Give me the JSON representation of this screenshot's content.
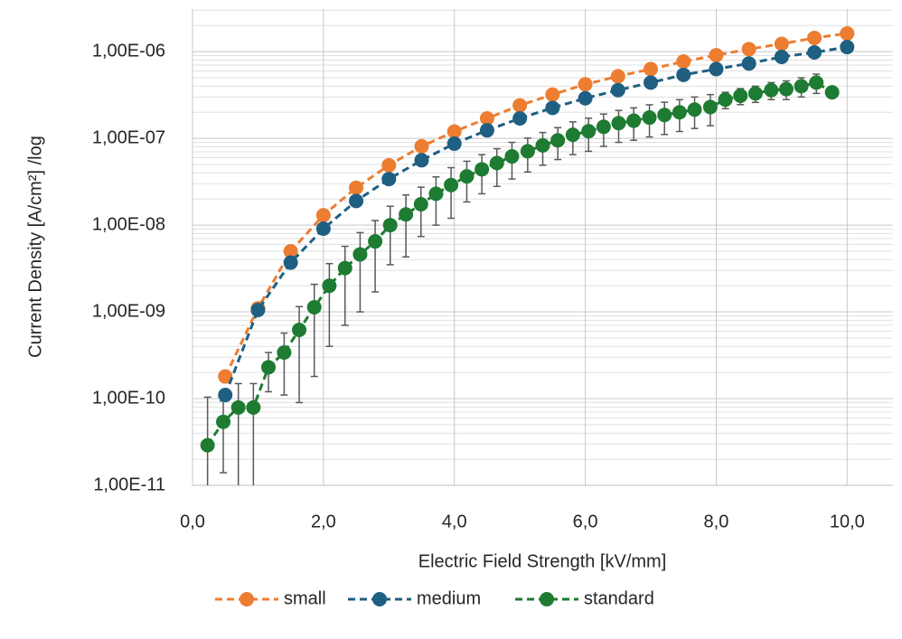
{
  "chart_data": {
    "type": "line",
    "x_label": "Electric Field Strength [kV/mm]",
    "y_label": "Current Density [A/cm²] /log",
    "log_y": true,
    "grid": true,
    "minor_grid": true,
    "legend": "bottom",
    "xlim": [
      0,
      10.7
    ],
    "xticks": [
      {
        "value": 0,
        "label": "0,0"
      },
      {
        "value": 2,
        "label": "2,0"
      },
      {
        "value": 4,
        "label": "4,0"
      },
      {
        "value": 6,
        "label": "6,0"
      },
      {
        "value": 8,
        "label": "8,0"
      },
      {
        "value": 10,
        "label": "10,0"
      }
    ],
    "ylim": [
      1e-11,
      3.1e-06
    ],
    "yticks": [
      {
        "value": 1e-11,
        "label": "1,00E-11"
      },
      {
        "value": 1e-10,
        "label": "1,00E-10"
      },
      {
        "value": 1e-09,
        "label": "1,00E-09"
      },
      {
        "value": 1e-08,
        "label": "1,00E-08"
      },
      {
        "value": 1e-07,
        "label": "1,00E-07"
      },
      {
        "value": 1e-06,
        "label": "1,00E-06"
      }
    ],
    "series": [
      {
        "name": "small",
        "color": "#ED7D31",
        "x": [
          0.5,
          1,
          1.5,
          2,
          2.5,
          3,
          3.5,
          4,
          4.5,
          5,
          5.5,
          6,
          6.5,
          7,
          7.5,
          8,
          8.5,
          9,
          9.5,
          10
        ],
        "values": [
          1.8e-10,
          1.1e-09,
          5e-09,
          1.3e-08,
          2.7e-08,
          4.9e-08,
          8.1e-08,
          1.2e-07,
          1.7e-07,
          2.4e-07,
          3.2e-07,
          4.2e-07,
          5.2e-07,
          6.3e-07,
          7.7e-07,
          9.1e-07,
          1.07e-06,
          1.23e-06,
          1.44e-06,
          1.62e-06
        ]
      },
      {
        "name": "medium",
        "color": "#1F5F82",
        "x": [
          0.5,
          1,
          1.5,
          2,
          2.5,
          3,
          3.5,
          4,
          4.5,
          5,
          5.5,
          6,
          6.5,
          7,
          7.5,
          8,
          8.5,
          9,
          9.5,
          10
        ],
        "values": [
          1.1e-10,
          1.05e-09,
          3.7e-09,
          9.1e-09,
          1.9e-08,
          3.4e-08,
          5.6e-08,
          8.7e-08,
          1.24e-07,
          1.7e-07,
          2.25e-07,
          2.9e-07,
          3.6e-07,
          4.4e-07,
          5.4e-07,
          6.3e-07,
          7.3e-07,
          8.7e-07,
          9.8e-07,
          1.13e-06
        ]
      },
      {
        "name": "standard",
        "color": "#1E7B32",
        "x": [
          0.23,
          0.47,
          0.7,
          0.93,
          1.16,
          1.4,
          1.63,
          1.86,
          2.09,
          2.33,
          2.56,
          2.79,
          3.02,
          3.26,
          3.49,
          3.72,
          3.95,
          4.19,
          4.42,
          4.65,
          4.88,
          5.12,
          5.35,
          5.58,
          5.81,
          6.05,
          6.28,
          6.51,
          6.74,
          6.98,
          7.21,
          7.44,
          7.67,
          7.91,
          8.14,
          8.37,
          8.6,
          8.84,
          9.07,
          9.3,
          9.53,
          9.77
        ],
        "values": [
          2.9e-11,
          5.4e-11,
          7.9e-11,
          7.9e-11,
          2.3e-10,
          3.4e-10,
          6.2e-10,
          1.13e-09,
          2e-09,
          3.2e-09,
          4.6e-09,
          6.5e-09,
          1e-08,
          1.33e-08,
          1.74e-08,
          2.3e-08,
          2.9e-08,
          3.65e-08,
          4.4e-08,
          5.2e-08,
          6.2e-08,
          7.1e-08,
          8.3e-08,
          9.5e-08,
          1.1e-07,
          1.21e-07,
          1.36e-07,
          1.5e-07,
          1.6e-07,
          1.74e-07,
          1.86e-07,
          2e-07,
          2.15e-07,
          2.3e-07,
          2.8e-07,
          3.1e-07,
          3.3e-07,
          3.6e-07,
          3.7e-07,
          4e-07,
          4.4e-07,
          3.4e-07
        ],
        "errors": [
          7.5e-11,
          4e-11,
          7e-11,
          7e-11,
          1.1e-10,
          2.3e-10,
          5.3e-10,
          9.5e-10,
          1.6e-09,
          2.5e-09,
          3.6e-09,
          4.8e-09,
          6.5e-09,
          9e-09,
          1e-08,
          1.3e-08,
          1.7e-08,
          1.8e-08,
          2.1e-08,
          2.4e-08,
          2.8e-08,
          3e-08,
          3.4e-08,
          3.8e-08,
          4.5e-08,
          5e-08,
          5.5e-08,
          6e-08,
          6.5e-08,
          7e-08,
          7.5e-08,
          8e-08,
          8.5e-08,
          9e-08,
          6e-08,
          6.5e-08,
          7e-08,
          8e-08,
          9e-08,
          1e-07,
          1.1e-07,
          null
        ]
      }
    ]
  }
}
